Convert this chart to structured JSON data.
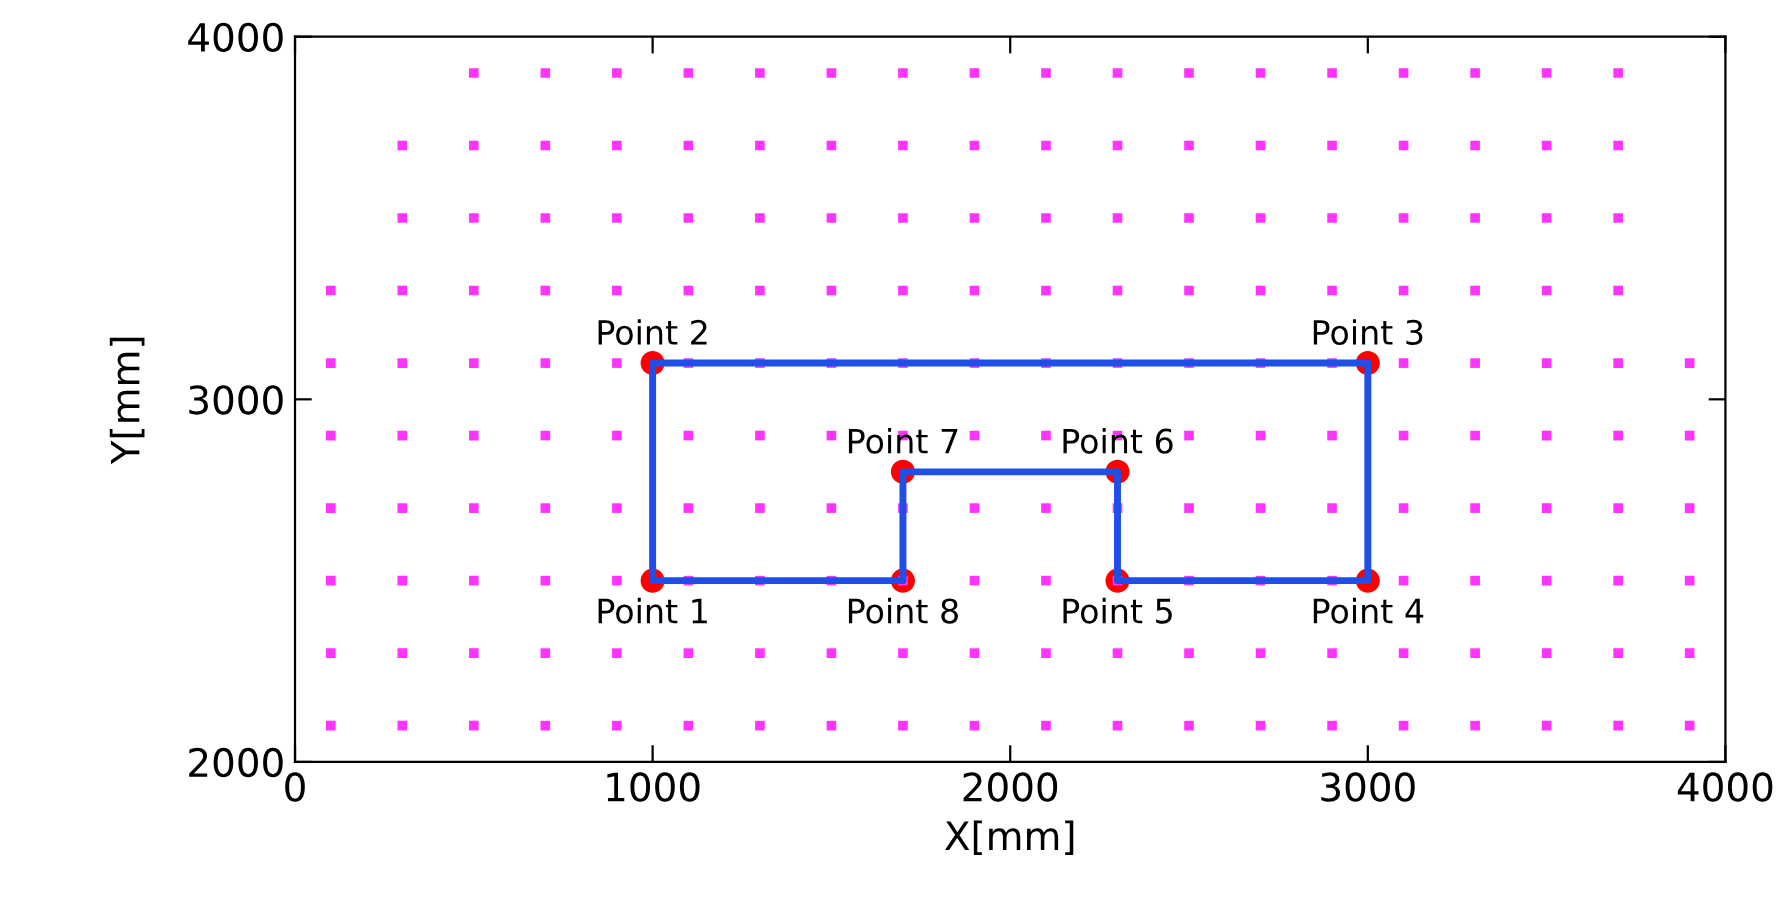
{
  "chart_data": {
    "type": "scatter",
    "xlabel": "X[mm]",
    "ylabel": "Y[mm]",
    "xlim": [
      0,
      4000
    ],
    "ylim": [
      2000,
      4000
    ],
    "xticks": [
      0,
      1000,
      2000,
      3000,
      4000
    ],
    "yticks": [
      2000,
      3000,
      4000
    ],
    "grid": false,
    "legend": false,
    "series": [
      {
        "marker": "square",
        "color": "#ff33ff",
        "x": [
          100,
          300,
          500,
          700,
          900,
          1100,
          1300,
          1500,
          1700,
          1900,
          2100,
          2300,
          2500,
          2700,
          2900,
          3100,
          3300,
          3500,
          3700,
          3900,
          100,
          300,
          500,
          700,
          900,
          1100,
          1300,
          1500,
          1700,
          1900,
          2100,
          2300,
          2500,
          2700,
          2900,
          3100,
          3300,
          3500,
          3700,
          3900,
          100,
          300,
          500,
          700,
          900,
          1100,
          1300,
          1500,
          1700,
          1900,
          2100,
          2300,
          2500,
          2700,
          2900,
          3100,
          3300,
          3500,
          3700,
          3900,
          100,
          300,
          500,
          700,
          900,
          1100,
          1300,
          1500,
          1700,
          1900,
          2100,
          2300,
          2500,
          2700,
          2900,
          3100,
          3300,
          3500,
          3700,
          3900,
          100,
          300,
          500,
          700,
          900,
          1100,
          1300,
          1500,
          1700,
          1900,
          2100,
          2300,
          2500,
          2700,
          2900,
          3100,
          3300,
          3500,
          3700,
          3900,
          100,
          300,
          500,
          700,
          900,
          1100,
          1300,
          1500,
          1700,
          1900,
          2100,
          2300,
          2500,
          2700,
          2900,
          3100,
          3300,
          3500,
          3700,
          3900,
          100,
          300,
          500,
          700,
          900,
          1100,
          1300,
          1500,
          1700,
          1900,
          2100,
          2300,
          2500,
          2700,
          2900,
          3100,
          3300,
          3500,
          3700,
          300,
          500,
          700,
          900,
          1100,
          1300,
          1500,
          1700,
          1900,
          2100,
          2300,
          2500,
          2700,
          2900,
          3100,
          3300,
          3500,
          3700,
          300,
          500,
          700,
          900,
          1100,
          1300,
          1500,
          1700,
          1900,
          2100,
          2300,
          2500,
          2700,
          2900,
          3100,
          3300,
          3500,
          3700,
          500,
          700,
          900,
          1100,
          1300,
          1500,
          1700,
          1900,
          2100,
          2300,
          2500,
          2700,
          2900,
          3100,
          3300,
          3500,
          3700
        ],
        "values": [
          2100,
          2100,
          2100,
          2100,
          2100,
          2100,
          2100,
          2100,
          2100,
          2100,
          2100,
          2100,
          2100,
          2100,
          2100,
          2100,
          2100,
          2100,
          2100,
          2100,
          2300,
          2300,
          2300,
          2300,
          2300,
          2300,
          2300,
          2300,
          2300,
          2300,
          2300,
          2300,
          2300,
          2300,
          2300,
          2300,
          2300,
          2300,
          2300,
          2300,
          2500,
          2500,
          2500,
          2500,
          2500,
          2500,
          2500,
          2500,
          2500,
          2500,
          2500,
          2500,
          2500,
          2500,
          2500,
          2500,
          2500,
          2500,
          2500,
          2500,
          2700,
          2700,
          2700,
          2700,
          2700,
          2700,
          2700,
          2700,
          2700,
          2700,
          2700,
          2700,
          2700,
          2700,
          2700,
          2700,
          2700,
          2700,
          2700,
          2700,
          2900,
          2900,
          2900,
          2900,
          2900,
          2900,
          2900,
          2900,
          2900,
          2900,
          2900,
          2900,
          2900,
          2900,
          2900,
          2900,
          2900,
          2900,
          2900,
          2900,
          3100,
          3100,
          3100,
          3100,
          3100,
          3100,
          3100,
          3100,
          3100,
          3100,
          3100,
          3100,
          3100,
          3100,
          3100,
          3100,
          3100,
          3100,
          3100,
          3100,
          3300,
          3300,
          3300,
          3300,
          3300,
          3300,
          3300,
          3300,
          3300,
          3300,
          3300,
          3300,
          3300,
          3300,
          3300,
          3300,
          3300,
          3300,
          3300,
          3500,
          3500,
          3500,
          3500,
          3500,
          3500,
          3500,
          3500,
          3500,
          3500,
          3500,
          3500,
          3500,
          3500,
          3500,
          3500,
          3500,
          3500,
          3700,
          3700,
          3700,
          3700,
          3700,
          3700,
          3700,
          3700,
          3700,
          3700,
          3700,
          3700,
          3700,
          3700,
          3700,
          3700,
          3700,
          3700,
          3900,
          3900,
          3900,
          3900,
          3900,
          3900,
          3900,
          3900,
          3900,
          3900,
          3900,
          3900,
          3900,
          3900,
          3900,
          3900,
          3900
        ]
      },
      {
        "type": "line",
        "color": "#1f4fe6",
        "line_style": "solid",
        "marker": "none",
        "x": [
          1000,
          1000,
          3000,
          3000
        ],
        "values": [
          2500,
          3100,
          3100,
          2500
        ]
      },
      {
        "type": "line",
        "color": "#1f4fe6",
        "line_style": "solid",
        "marker": "none",
        "x": [
          1000,
          1700,
          1700,
          2300,
          2300,
          3000
        ],
        "values": [
          2500,
          2500,
          2800,
          2800,
          2500,
          2500
        ]
      },
      {
        "type": "scatter",
        "marker": "circle",
        "color": "#ff0000",
        "x": [
          1000,
          1000,
          3000,
          3000,
          2300,
          2300,
          1700,
          1700
        ],
        "values": [
          2500,
          3100,
          3100,
          2500,
          2500,
          2800,
          2800,
          2500
        ]
      }
    ],
    "annotations": [
      {
        "text": "Point 1",
        "x": 1000,
        "y": 2500
      },
      {
        "text": "Point 2",
        "x": 1000,
        "y": 3100
      },
      {
        "text": "Point 3",
        "x": 3000,
        "y": 3100
      },
      {
        "text": "Point 4",
        "x": 3000,
        "y": 2500
      },
      {
        "text": "Point 5",
        "x": 2300,
        "y": 2500
      },
      {
        "text": "Point 6",
        "x": 2300,
        "y": 2800
      },
      {
        "text": "Point 7",
        "x": 1700,
        "y": 2800
      },
      {
        "text": "Point 8",
        "x": 1700,
        "y": 2500
      }
    ]
  }
}
